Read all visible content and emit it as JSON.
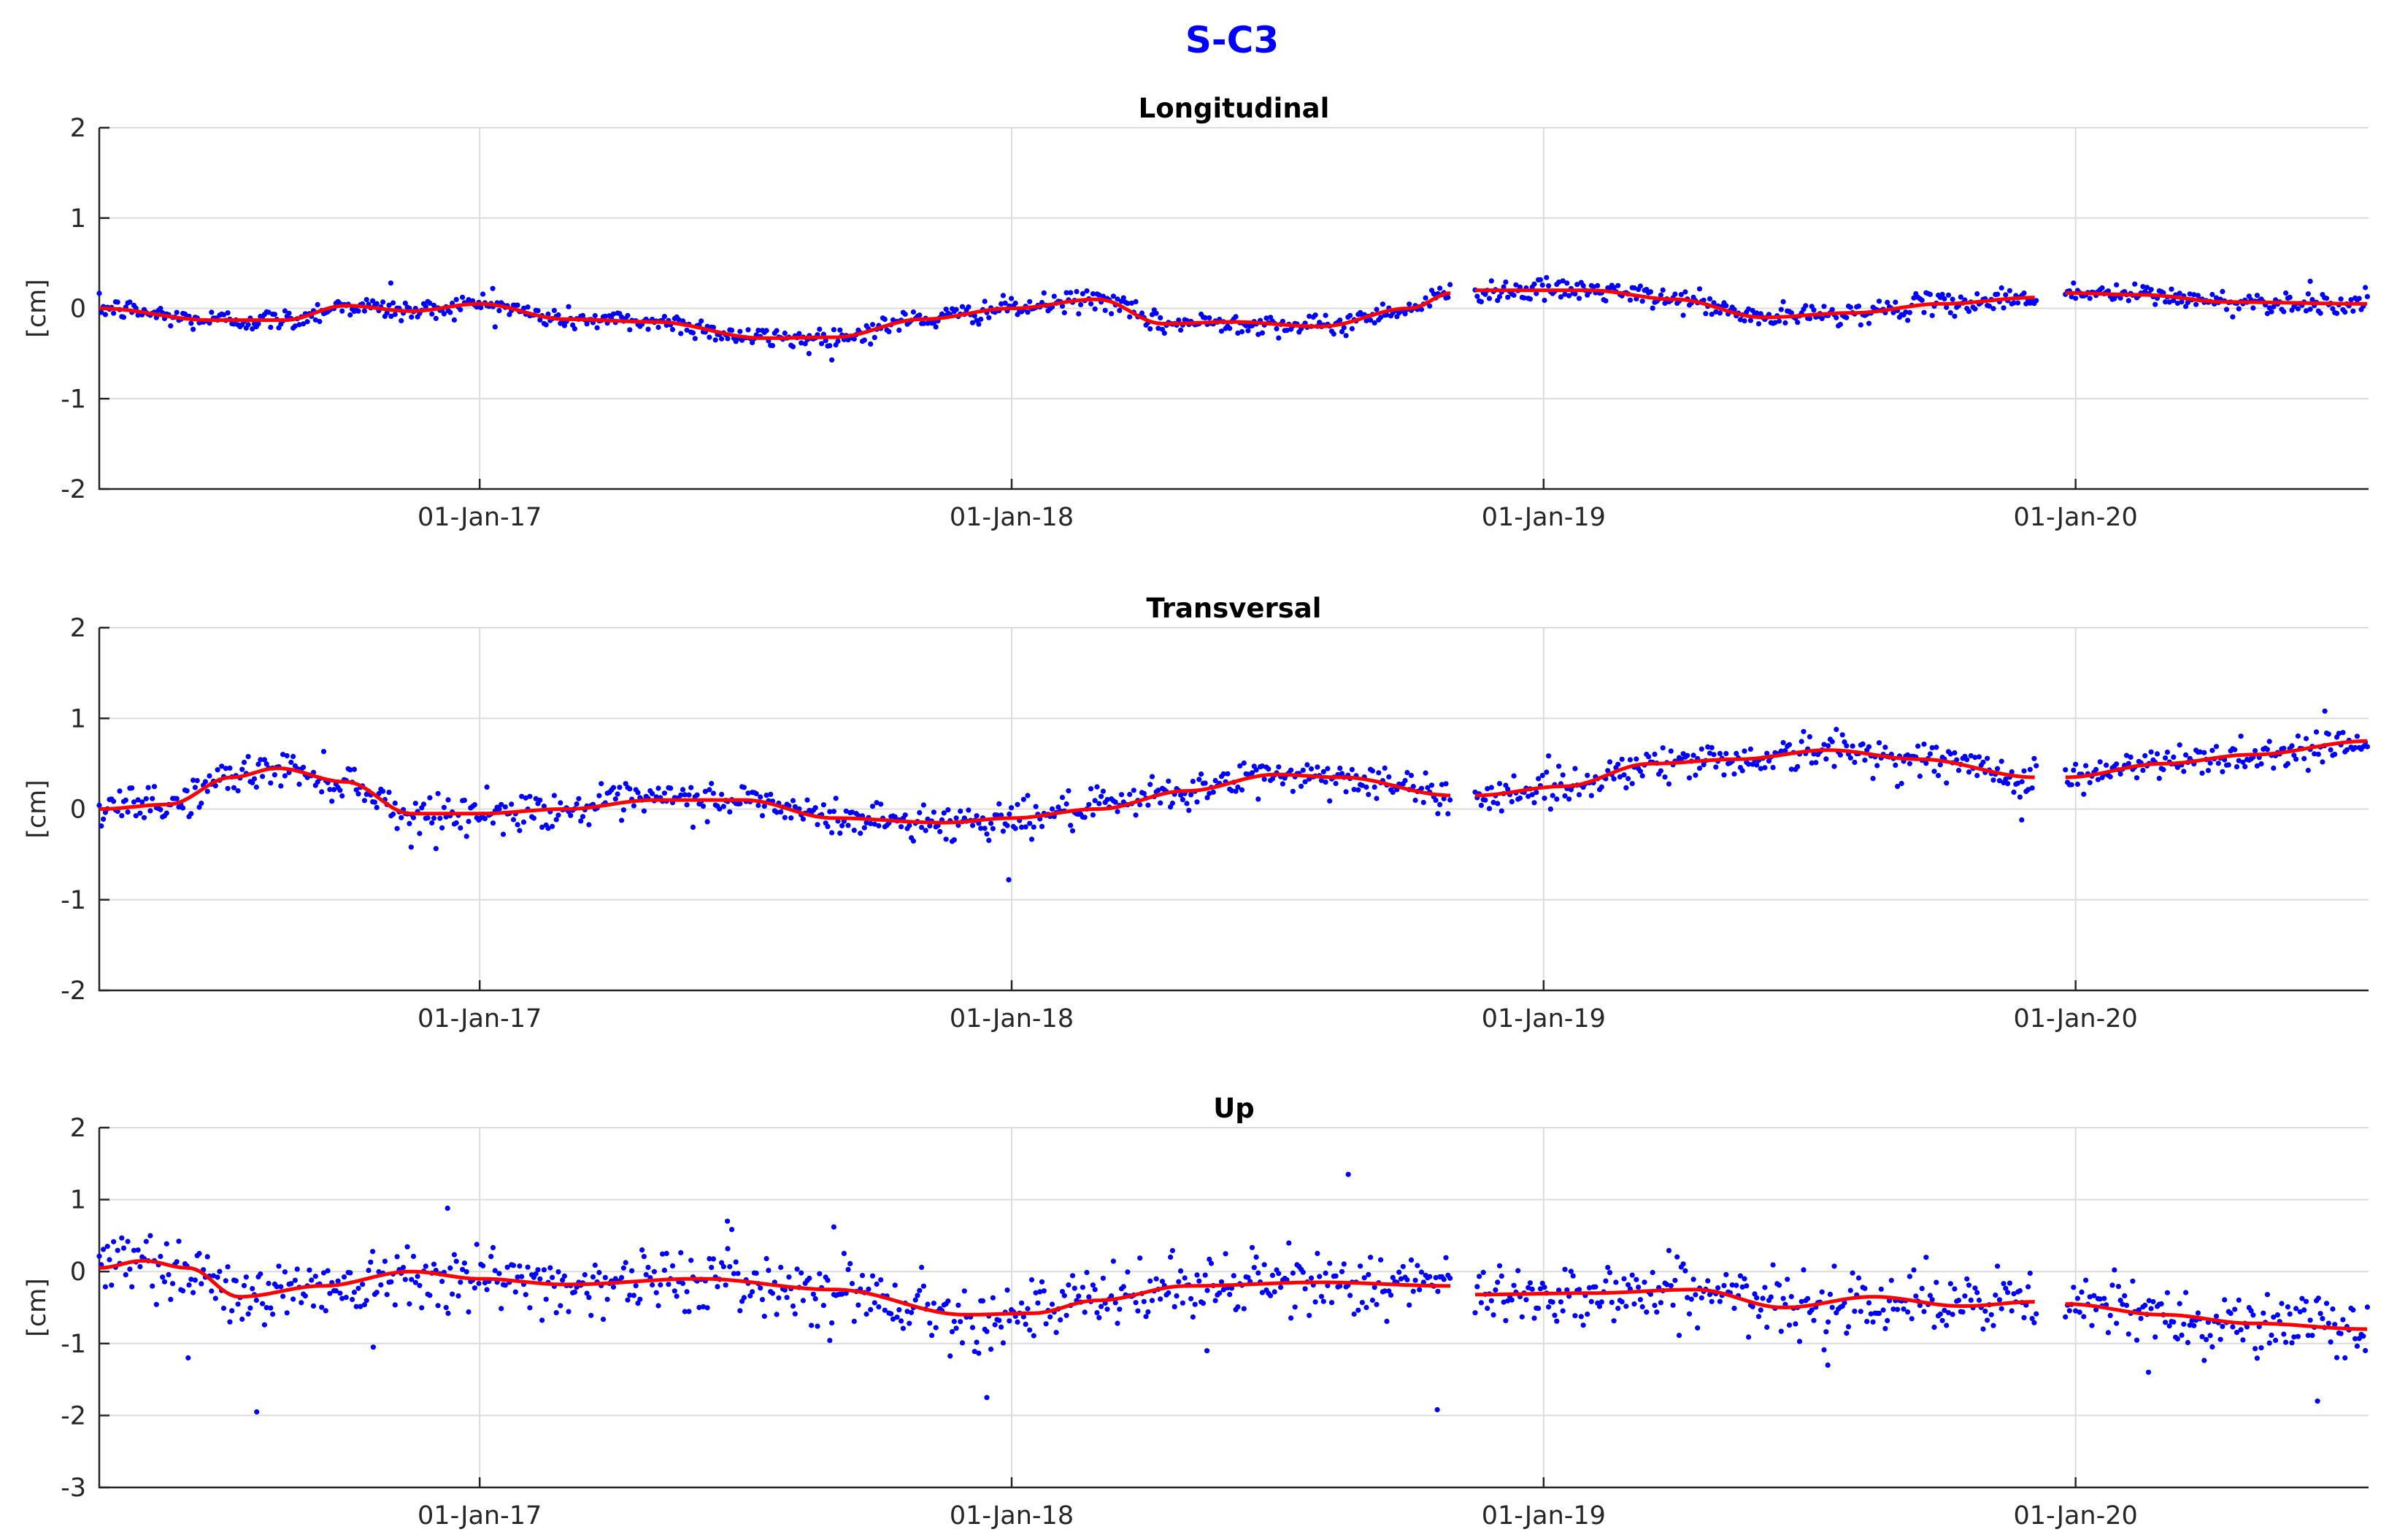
{
  "figure": {
    "title": "S-C3",
    "title_color": "#0000ff",
    "marker_color": "#0000ff",
    "trend_color": "#ff0000"
  },
  "chart_data": [
    {
      "type": "scatter",
      "title": "Longitudinal",
      "ylabel": "[cm]",
      "xlim": [
        "2016-04-15",
        "2020-07-20"
      ],
      "ylim": [
        -2,
        2
      ],
      "yticks": [
        -2,
        -1,
        0,
        1,
        2
      ],
      "xtick_dates": [
        "2017-01-01",
        "2018-01-01",
        "2019-01-01",
        "2020-01-01"
      ],
      "xtick_labels": [
        "01-Jan-17",
        "01-Jan-18",
        "01-Jan-19",
        "01-Jan-20"
      ],
      "grid": true,
      "noise_sd": 0.06,
      "segments": [
        [
          "2016-04-15",
          "2018-10-30"
        ],
        [
          "2018-11-15",
          "2019-12-05"
        ],
        [
          "2019-12-25",
          "2020-07-20"
        ]
      ],
      "series": [
        {
          "kind": "trend",
          "points": [
            [
              "2016-04-15",
              0.0
            ],
            [
              "2016-07-01",
              -0.13
            ],
            [
              "2016-08-20",
              -0.13
            ],
            [
              "2016-10-01",
              0.03
            ],
            [
              "2016-11-15",
              -0.03
            ],
            [
              "2017-01-01",
              0.05
            ],
            [
              "2017-03-01",
              -0.12
            ],
            [
              "2017-05-01",
              -0.15
            ],
            [
              "2017-07-15",
              -0.33
            ],
            [
              "2017-09-01",
              -0.32
            ],
            [
              "2017-11-01",
              -0.12
            ],
            [
              "2018-01-01",
              0.0
            ],
            [
              "2018-03-01",
              0.1
            ],
            [
              "2018-04-15",
              -0.17
            ],
            [
              "2018-06-01",
              -0.15
            ],
            [
              "2018-08-01",
              -0.2
            ],
            [
              "2018-10-01",
              0.0
            ],
            [
              "2018-10-30",
              0.17
            ],
            [
              "2018-11-15",
              0.2
            ],
            [
              "2019-02-01",
              0.2
            ],
            [
              "2019-04-01",
              0.1
            ],
            [
              "2019-06-01",
              -0.1
            ],
            [
              "2019-08-01",
              -0.05
            ],
            [
              "2019-10-01",
              0.05
            ],
            [
              "2019-12-05",
              0.12
            ],
            [
              "2019-12-25",
              0.17
            ],
            [
              "2020-02-15",
              0.15
            ],
            [
              "2020-04-15",
              0.07
            ],
            [
              "2020-07-20",
              0.05
            ]
          ]
        },
        {
          "kind": "outliers",
          "points": [
            [
              "2016-11-01",
              0.28
            ],
            [
              "2017-01-10",
              0.22
            ],
            [
              "2017-08-15",
              -0.5
            ],
            [
              "2020-06-10",
              0.3
            ]
          ]
        }
      ]
    },
    {
      "type": "scatter",
      "title": "Transversal",
      "ylabel": "[cm]",
      "xlim": [
        "2016-04-15",
        "2020-07-20"
      ],
      "ylim": [
        -2,
        2
      ],
      "yticks": [
        -2,
        -1,
        0,
        1,
        2
      ],
      "xtick_dates": [
        "2017-01-01",
        "2018-01-01",
        "2019-01-01",
        "2020-01-01"
      ],
      "xtick_labels": [
        "01-Jan-17",
        "01-Jan-18",
        "01-Jan-19",
        "01-Jan-20"
      ],
      "grid": true,
      "noise_sd": 0.1,
      "segments": [
        [
          "2016-04-15",
          "2018-10-30"
        ],
        [
          "2018-11-15",
          "2019-12-05"
        ],
        [
          "2019-12-25",
          "2020-07-20"
        ]
      ],
      "series": [
        {
          "kind": "trend",
          "points": [
            [
              "2016-04-15",
              0.0
            ],
            [
              "2016-06-01",
              0.05
            ],
            [
              "2016-07-15",
              0.35
            ],
            [
              "2016-08-15",
              0.45
            ],
            [
              "2016-10-01",
              0.3
            ],
            [
              "2016-11-15",
              -0.05
            ],
            [
              "2017-01-01",
              -0.05
            ],
            [
              "2017-03-01",
              0.0
            ],
            [
              "2017-05-01",
              0.1
            ],
            [
              "2017-07-01",
              0.1
            ],
            [
              "2017-09-01",
              -0.1
            ],
            [
              "2017-11-15",
              -0.15
            ],
            [
              "2018-01-01",
              -0.1
            ],
            [
              "2018-03-01",
              0.0
            ],
            [
              "2018-05-01",
              0.2
            ],
            [
              "2018-07-01",
              0.38
            ],
            [
              "2018-08-15",
              0.35
            ],
            [
              "2018-10-30",
              0.15
            ],
            [
              "2018-11-15",
              0.15
            ],
            [
              "2019-01-15",
              0.25
            ],
            [
              "2019-03-15",
              0.5
            ],
            [
              "2019-05-15",
              0.55
            ],
            [
              "2019-07-15",
              0.65
            ],
            [
              "2019-09-15",
              0.55
            ],
            [
              "2019-12-05",
              0.35
            ],
            [
              "2019-12-25",
              0.35
            ],
            [
              "2020-03-01",
              0.5
            ],
            [
              "2020-05-01",
              0.6
            ],
            [
              "2020-07-20",
              0.75
            ]
          ]
        },
        {
          "kind": "outliers",
          "points": [
            [
              "2016-11-15",
              -0.42
            ],
            [
              "2017-12-30",
              -0.78
            ],
            [
              "2019-11-25",
              -0.12
            ],
            [
              "2020-06-20",
              1.08
            ]
          ]
        }
      ]
    },
    {
      "type": "scatter",
      "title": "Up",
      "ylabel": "[cm]",
      "xlim": [
        "2016-04-15",
        "2020-07-20"
      ],
      "ylim": [
        -3,
        2
      ],
      "yticks": [
        -3,
        -2,
        -1,
        0,
        1,
        2
      ],
      "xtick_dates": [
        "2017-01-01",
        "2018-01-01",
        "2019-01-01",
        "2020-01-01"
      ],
      "xtick_labels": [
        "01-Jan-17",
        "01-Jan-18",
        "01-Jan-19",
        "01-Jan-20"
      ],
      "grid": true,
      "noise_sd": 0.22,
      "segments": [
        [
          "2016-04-15",
          "2018-10-30"
        ],
        [
          "2018-11-15",
          "2019-12-05"
        ],
        [
          "2019-12-25",
          "2020-07-20"
        ]
      ],
      "series": [
        {
          "kind": "trend",
          "points": [
            [
              "2016-04-15",
              0.05
            ],
            [
              "2016-05-15",
              0.15
            ],
            [
              "2016-06-15",
              0.05
            ],
            [
              "2016-07-20",
              -0.35
            ],
            [
              "2016-09-15",
              -0.2
            ],
            [
              "2016-11-15",
              0.0
            ],
            [
              "2017-01-01",
              -0.1
            ],
            [
              "2017-03-01",
              -0.18
            ],
            [
              "2017-06-01",
              -0.1
            ],
            [
              "2017-09-01",
              -0.25
            ],
            [
              "2017-12-01",
              -0.6
            ],
            [
              "2018-01-15",
              -0.58
            ],
            [
              "2018-03-01",
              -0.4
            ],
            [
              "2018-05-01",
              -0.2
            ],
            [
              "2018-08-01",
              -0.15
            ],
            [
              "2018-10-30",
              -0.2
            ],
            [
              "2018-11-15",
              -0.32
            ],
            [
              "2019-02-01",
              -0.3
            ],
            [
              "2019-04-15",
              -0.25
            ],
            [
              "2019-06-15",
              -0.5
            ],
            [
              "2019-08-15",
              -0.35
            ],
            [
              "2019-10-15",
              -0.48
            ],
            [
              "2019-12-05",
              -0.42
            ],
            [
              "2019-12-25",
              -0.45
            ],
            [
              "2020-03-01",
              -0.6
            ],
            [
              "2020-05-01",
              -0.72
            ],
            [
              "2020-07-20",
              -0.8
            ]
          ]
        },
        {
          "kind": "outliers",
          "points": [
            [
              "2016-06-15",
              -1.2
            ],
            [
              "2016-08-01",
              -1.95
            ],
            [
              "2016-10-20",
              -1.05
            ],
            [
              "2016-12-10",
              0.88
            ],
            [
              "2017-06-20",
              0.7
            ],
            [
              "2017-09-01",
              0.62
            ],
            [
              "2017-12-15",
              -1.75
            ],
            [
              "2018-05-15",
              -1.1
            ],
            [
              "2018-08-20",
              1.35
            ],
            [
              "2018-10-20",
              -1.92
            ],
            [
              "2019-07-15",
              -1.3
            ],
            [
              "2020-02-20",
              -1.4
            ],
            [
              "2020-06-15",
              -1.8
            ]
          ]
        }
      ]
    }
  ]
}
